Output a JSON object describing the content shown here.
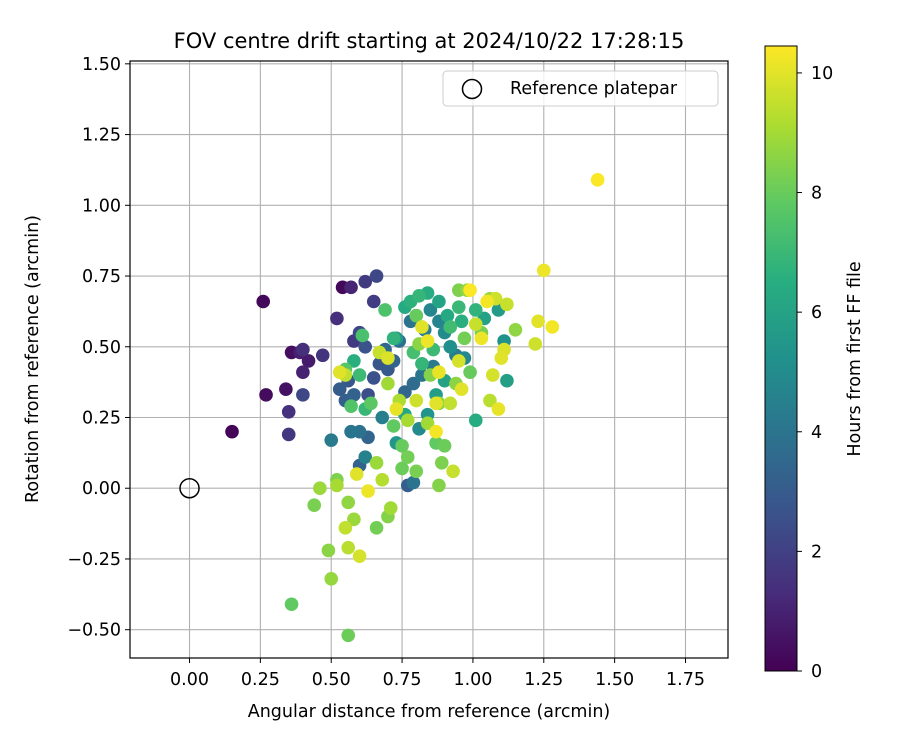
{
  "chart_data": {
    "type": "scatter",
    "title": "FOV centre drift starting at 2024/10/22 17:28:15",
    "xlabel": "Angular distance from reference (arcmin)",
    "ylabel": "Rotation from reference (arcmin)",
    "xlim": [
      -0.21,
      1.9
    ],
    "ylim": [
      -0.6,
      1.51
    ],
    "xticks": [
      "0.00",
      "0.25",
      "0.50",
      "0.75",
      "1.00",
      "1.25",
      "1.50",
      "1.75"
    ],
    "yticks": [
      "−0.50",
      "−0.25",
      "0.00",
      "0.25",
      "0.50",
      "0.75",
      "1.00",
      "1.25",
      "1.50"
    ],
    "grid": true,
    "legend": {
      "placement": "upper right",
      "entries": [
        {
          "label": "Reference platepar",
          "marker": "hollow-circle"
        }
      ]
    },
    "colorbar": {
      "label": "Hours from first FF file",
      "colormap": "viridis",
      "range": [
        0,
        10.45
      ],
      "ticks": [
        "0",
        "2",
        "4",
        "6",
        "8",
        "10"
      ]
    },
    "reference_point": {
      "name": "Reference platepar",
      "x": 0.0,
      "y": 0.0
    },
    "points": [
      [
        0.15,
        0.2,
        0.1
      ],
      [
        0.26,
        0.66,
        0.2
      ],
      [
        0.27,
        0.33,
        0.3
      ],
      [
        0.34,
        0.35,
        0.5
      ],
      [
        0.35,
        0.27,
        1.5
      ],
      [
        0.35,
        0.19,
        1.7
      ],
      [
        0.36,
        0.48,
        0.4
      ],
      [
        0.39,
        0.48,
        0.9
      ],
      [
        0.4,
        0.41,
        1.0
      ],
      [
        0.4,
        0.49,
        1.4
      ],
      [
        0.4,
        0.33,
        2.3
      ],
      [
        0.42,
        0.45,
        0.8
      ],
      [
        0.47,
        0.47,
        1.6
      ],
      [
        0.52,
        0.6,
        1.4
      ],
      [
        0.54,
        0.71,
        0.2
      ],
      [
        0.57,
        0.71,
        1.1
      ],
      [
        0.62,
        0.73,
        1.8
      ],
      [
        0.66,
        0.75,
        2.3
      ],
      [
        0.65,
        0.66,
        1.9
      ],
      [
        0.58,
        0.52,
        1.8
      ],
      [
        0.6,
        0.55,
        2.2
      ],
      [
        0.62,
        0.5,
        2.7
      ],
      [
        0.56,
        0.38,
        2.9
      ],
      [
        0.53,
        0.35,
        3.1
      ],
      [
        0.55,
        0.31,
        3.2
      ],
      [
        0.58,
        0.33,
        3.3
      ],
      [
        0.63,
        0.33,
        2.5
      ],
      [
        0.65,
        0.39,
        2.6
      ],
      [
        0.67,
        0.44,
        2.8
      ],
      [
        0.7,
        0.42,
        3.0
      ],
      [
        0.72,
        0.45,
        3.4
      ],
      [
        0.69,
        0.49,
        3.6
      ],
      [
        0.74,
        0.52,
        3.8
      ],
      [
        0.78,
        0.59,
        4.0
      ],
      [
        0.8,
        0.61,
        4.2
      ],
      [
        0.83,
        0.56,
        4.5
      ],
      [
        0.85,
        0.63,
        4.8
      ],
      [
        0.88,
        0.59,
        4.7
      ],
      [
        0.9,
        0.55,
        5.0
      ],
      [
        0.92,
        0.5,
        5.2
      ],
      [
        0.76,
        0.34,
        3.5
      ],
      [
        0.79,
        0.37,
        3.7
      ],
      [
        0.82,
        0.4,
        4.1
      ],
      [
        0.86,
        0.43,
        4.3
      ],
      [
        0.94,
        0.47,
        4.4
      ],
      [
        0.97,
        0.46,
        4.9
      ],
      [
        0.6,
        0.2,
        3.9
      ],
      [
        0.63,
        0.18,
        3.4
      ],
      [
        0.57,
        0.2,
        4.1
      ],
      [
        0.5,
        0.17,
        4.3
      ],
      [
        0.62,
        0.11,
        4.6
      ],
      [
        0.6,
        0.08,
        3.3
      ],
      [
        0.77,
        0.01,
        3.2
      ],
      [
        0.79,
        0.02,
        4.0
      ],
      [
        0.68,
        0.25,
        4.5
      ],
      [
        0.73,
        0.16,
        5.5
      ],
      [
        0.81,
        0.21,
        5.0
      ],
      [
        0.84,
        0.26,
        5.4
      ],
      [
        0.87,
        0.33,
        5.8
      ],
      [
        0.9,
        0.38,
        6.0
      ],
      [
        0.76,
        0.26,
        6.2
      ],
      [
        0.73,
        0.53,
        5.6
      ],
      [
        0.76,
        0.64,
        6.4
      ],
      [
        0.78,
        0.66,
        6.7
      ],
      [
        0.81,
        0.68,
        6.9
      ],
      [
        0.84,
        0.69,
        6.5
      ],
      [
        0.88,
        0.66,
        6.1
      ],
      [
        0.91,
        0.61,
        6.3
      ],
      [
        0.96,
        0.59,
        6.6
      ],
      [
        1.01,
        0.63,
        6.8
      ],
      [
        1.04,
        0.6,
        6.0
      ],
      [
        1.09,
        0.63,
        5.7
      ],
      [
        1.11,
        0.52,
        5.3
      ],
      [
        1.12,
        0.38,
        5.9
      ],
      [
        1.01,
        0.24,
        6.5
      ],
      [
        0.95,
        0.64,
        7.0
      ],
      [
        0.92,
        0.57,
        7.2
      ],
      [
        0.86,
        0.49,
        7.1
      ],
      [
        0.82,
        0.44,
        6.9
      ],
      [
        0.79,
        0.48,
        7.3
      ],
      [
        0.72,
        0.53,
        6.8
      ],
      [
        0.69,
        0.63,
        7.5
      ],
      [
        0.61,
        0.54,
        7.4
      ],
      [
        0.58,
        0.45,
        6.6
      ],
      [
        0.6,
        0.4,
        7.1
      ],
      [
        0.55,
        0.42,
        7.7
      ],
      [
        0.57,
        0.29,
        7.6
      ],
      [
        0.62,
        0.28,
        7.0
      ],
      [
        0.64,
        0.3,
        7.8
      ],
      [
        0.72,
        0.22,
        7.9
      ],
      [
        0.75,
        0.15,
        8.0
      ],
      [
        0.77,
        0.11,
        8.2
      ],
      [
        0.8,
        0.06,
        8.3
      ],
      [
        0.75,
        0.07,
        8.1
      ],
      [
        0.89,
        0.09,
        8.4
      ],
      [
        0.88,
        0.01,
        8.5
      ],
      [
        0.87,
        0.16,
        7.9
      ],
      [
        0.9,
        0.15,
        8.1
      ],
      [
        0.94,
        0.37,
        8.6
      ],
      [
        0.99,
        0.41,
        8.0
      ],
      [
        0.97,
        0.53,
        8.2
      ],
      [
        1.03,
        0.55,
        8.3
      ],
      [
        1.15,
        0.56,
        8.7
      ],
      [
        1.06,
        0.67,
        8.9
      ],
      [
        0.95,
        0.7,
        8.4
      ],
      [
        0.98,
        0.7,
        8.8
      ],
      [
        0.8,
        0.61,
        8.0
      ],
      [
        0.81,
        0.51,
        8.6
      ],
      [
        0.85,
        0.4,
        8.5
      ],
      [
        0.88,
        0.3,
        8.7
      ],
      [
        0.84,
        0.23,
        9.0
      ],
      [
        0.77,
        0.24,
        9.1
      ],
      [
        0.74,
        0.31,
        9.2
      ],
      [
        0.7,
        0.37,
        9.0
      ],
      [
        0.66,
        0.09,
        8.9
      ],
      [
        0.68,
        0.03,
        9.3
      ],
      [
        0.71,
        -0.07,
        9.0
      ],
      [
        0.7,
        -0.1,
        8.5
      ],
      [
        0.66,
        -0.14,
        8.2
      ],
      [
        0.55,
        -0.14,
        9.5
      ],
      [
        0.58,
        -0.11,
        8.9
      ],
      [
        0.56,
        -0.05,
        8.7
      ],
      [
        0.56,
        -0.21,
        9.4
      ],
      [
        0.6,
        -0.24,
        9.8
      ],
      [
        0.49,
        -0.22,
        8.6
      ],
      [
        0.5,
        -0.32,
        8.8
      ],
      [
        0.44,
        -0.06,
        8.3
      ],
      [
        0.46,
        0.0,
        8.9
      ],
      [
        0.52,
        0.03,
        8.4
      ],
      [
        0.52,
        0.01,
        9.1
      ],
      [
        0.36,
        -0.41,
        7.9
      ],
      [
        0.56,
        -0.52,
        8.1
      ],
      [
        0.59,
        0.05,
        10.0
      ],
      [
        0.63,
        -0.01,
        10.2
      ],
      [
        0.67,
        0.48,
        9.6
      ],
      [
        0.7,
        0.46,
        9.9
      ],
      [
        0.73,
        0.28,
        10.1
      ],
      [
        0.8,
        0.31,
        9.7
      ],
      [
        0.82,
        0.57,
        10.0
      ],
      [
        0.84,
        0.52,
        10.2
      ],
      [
        0.87,
        0.2,
        10.3
      ],
      [
        0.88,
        0.41,
        10.1
      ],
      [
        0.92,
        0.3,
        9.5
      ],
      [
        0.95,
        0.45,
        9.8
      ],
      [
        0.96,
        0.35,
        10.0
      ],
      [
        0.99,
        0.7,
        10.4
      ],
      [
        1.01,
        0.58,
        9.6
      ],
      [
        1.03,
        0.53,
        10.2
      ],
      [
        1.05,
        0.66,
        10.3
      ],
      [
        1.06,
        0.31,
        9.4
      ],
      [
        1.07,
        0.4,
        9.8
      ],
      [
        1.08,
        0.67,
        9.7
      ],
      [
        1.09,
        0.28,
        10.1
      ],
      [
        1.1,
        0.46,
        10.0
      ],
      [
        1.11,
        0.49,
        9.9
      ],
      [
        1.12,
        0.65,
        9.6
      ],
      [
        1.22,
        0.51,
        9.7
      ],
      [
        1.23,
        0.59,
        10.0
      ],
      [
        1.25,
        0.77,
        10.2
      ],
      [
        1.28,
        0.57,
        10.3
      ],
      [
        1.44,
        1.09,
        10.4
      ],
      [
        0.53,
        0.41,
        10.0
      ],
      [
        0.55,
        0.4,
        9.5
      ],
      [
        0.87,
        0.3,
        10.0
      ],
      [
        0.93,
        0.06,
        9.6
      ]
    ]
  }
}
